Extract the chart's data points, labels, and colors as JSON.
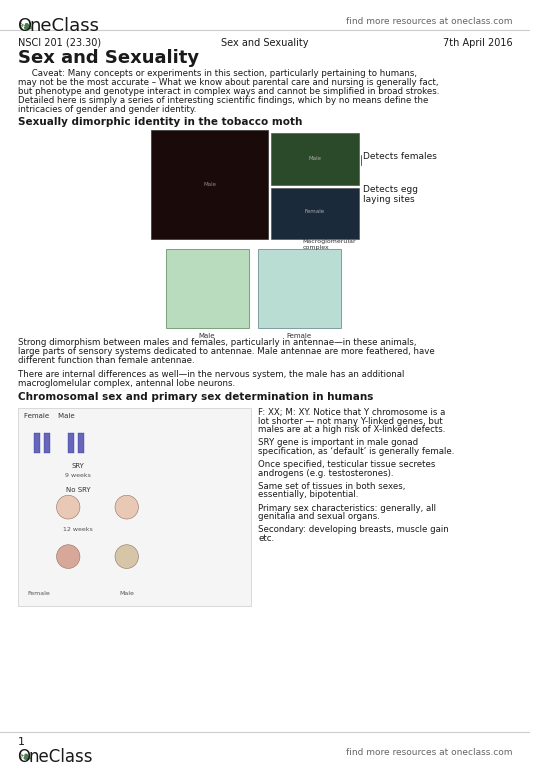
{
  "bg_color": "#ffffff",
  "header_logo_text": "OneClass",
  "header_logo_color": "#4a7c4e",
  "header_right_text": "find more resources at oneclass.com",
  "meta_left": "NSCI 201 (23.30)",
  "meta_center": "Sex and Sexuality",
  "meta_right": "7th April 2016",
  "title": "Sex and Sexuality",
  "body_para1": "     Caveat: Many concepts or experiments in this section, particularly pertaining to humans,\nmay not be the most accurate – What we know about parental care and nursing is generally fact,\nbut phenotype and genotype interact in complex ways and cannot be simplified in broad strokes.\nDetailed here is simply a series of interesting scientific findings, which by no means define the\nintricacies of gender and gender identity.",
  "section1_title": "Sexually dimorphic identity in the tobacco moth",
  "detects_females": "Detects females",
  "detects_egg": "Detects egg\nlaying sites",
  "body_para2": "Strong dimorphism between males and females, particularly in antennae—in these animals,\nlarge parts of sensory systems dedicated to antennae. Male antennae are more feathered, have\ndifferent function than female antennae.",
  "body_para3": "There are internal differences as well—in the nervous system, the male has an additional\nmacroglomelular complex, antennal lobe neurons.",
  "section2_title": "Chromosomal sex and primary sex determination in humans",
  "right_col_texts": [
    "F: XX; M: XY. Notice that Y chromosome is a\nlot shorter — not many Y-linked genes, but\nmales are at a high risk of X-linked defects.",
    "SRY gene is important in male gonad\nspecification, as ‘default’ is generally female.",
    "Once specified, testicular tissue secretes\nandrogens (e.g. testosterones).",
    "Same set of tissues in both sexes,\nessentially, bipotential.",
    "Primary sex characteristics: generally, all\ngenitalia and sexual organs.",
    "Secondary: developing breasts, muscle gain\netc."
  ],
  "footer_page_num": "1",
  "footer_logo_text": "OneClass",
  "footer_right_text": "find more resources at oneclass.com",
  "text_color": "#1a1a1a",
  "gray_color": "#666666",
  "line_color": "#cccccc"
}
